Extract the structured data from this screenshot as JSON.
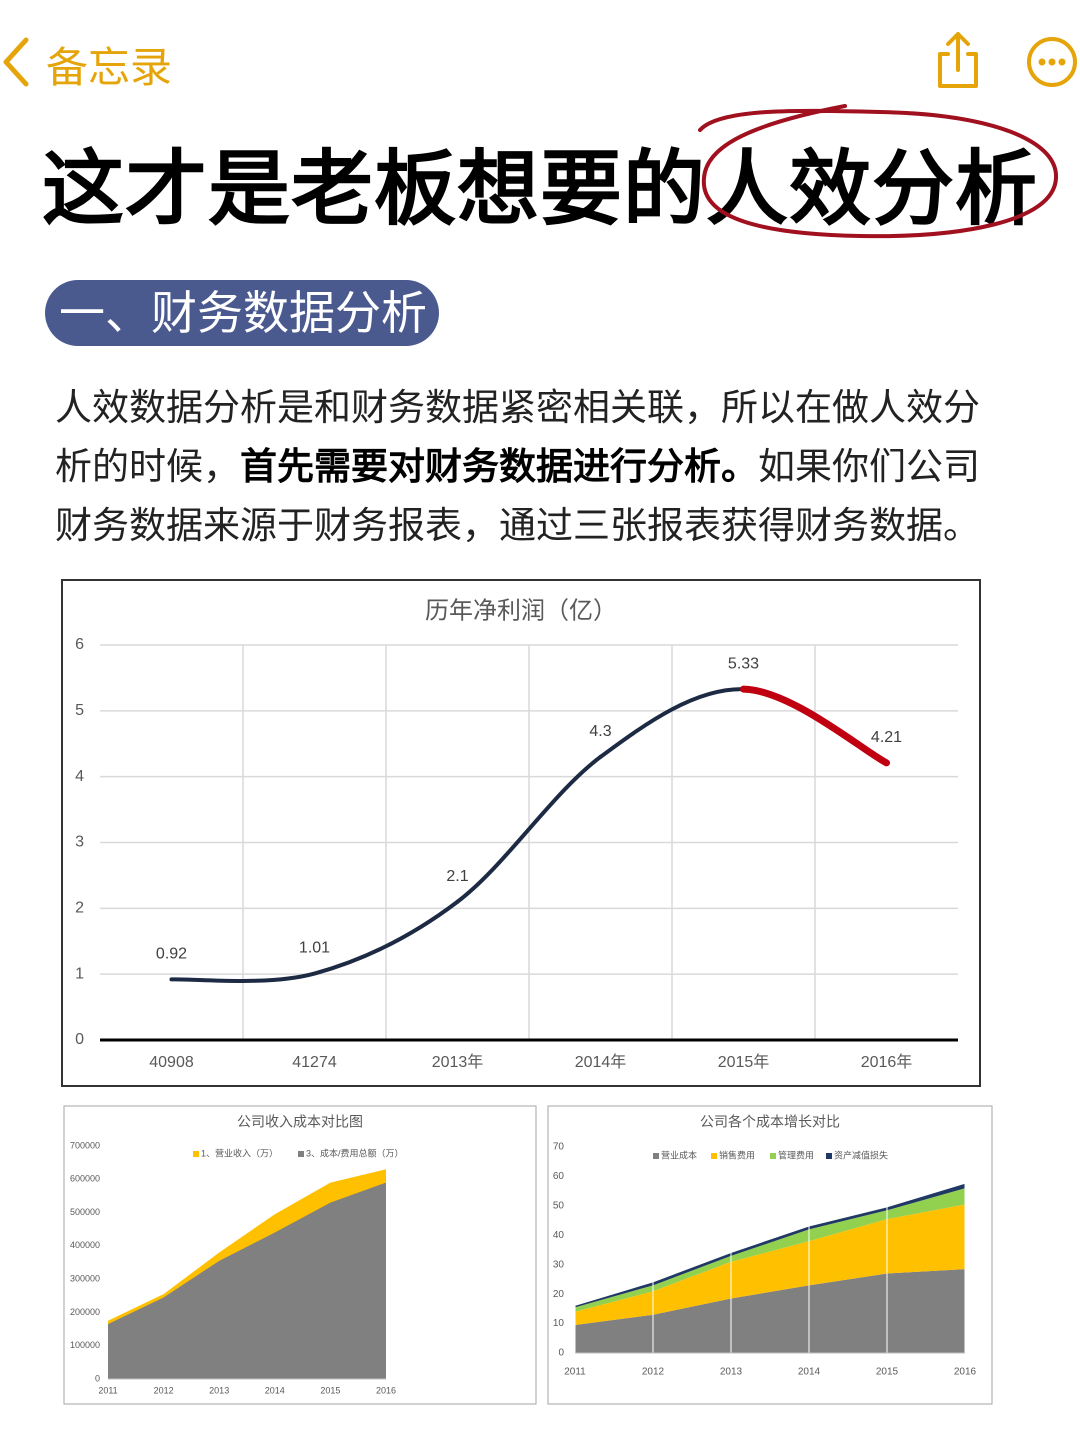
{
  "header": {
    "back": "备忘录"
  },
  "title": {
    "lead": "这才是老板想要的",
    "circled": "人效分析"
  },
  "section": "一、财务数据分析",
  "paragraph": {
    "start": "人效数据分析是和财务数据紧密相关联，所以在做人效分析的时候，",
    "bold": "首先需要对财务数据进行分析。",
    "end": "如果你们公司财务数据来源于财务报表，通过三张报表获得财务数据。"
  },
  "chart_data": [
    {
      "type": "line",
      "title": "历年净利润（亿）",
      "categories": [
        "40908",
        "41274",
        "2013年",
        "2014年",
        "2015年",
        "2016年"
      ],
      "values": [
        0.92,
        1.01,
        2.1,
        4.3,
        5.33,
        4.21
      ],
      "line_colors": [
        "#1c2a44",
        "#1c2a44",
        "#1c2a44",
        "#1c2a44",
        "#c00010"
      ],
      "ylim": [
        0,
        6
      ],
      "yticks": [
        0,
        1,
        2,
        3,
        4,
        5,
        6
      ],
      "grid": true
    },
    {
      "type": "area",
      "title": "公司收入成本对比图",
      "categories": [
        "2011",
        "2012",
        "2013",
        "2014",
        "2015",
        "2016"
      ],
      "series": [
        {
          "name": "1、营业收入（万）",
          "color": "#ffc000",
          "values": [
            175000,
            255000,
            380000,
            495000,
            590000,
            630000
          ]
        },
        {
          "name": "3、成本/费用总额（万）",
          "color": "#808080",
          "values": [
            165000,
            245000,
            355000,
            440000,
            530000,
            590000
          ]
        }
      ],
      "ylim": [
        0,
        700000
      ],
      "yticks": [
        0,
        100000,
        200000,
        300000,
        400000,
        500000,
        600000,
        700000
      ],
      "grid": false
    },
    {
      "type": "stacked_area",
      "title": "公司各个成本增长对比",
      "categories": [
        "2011",
        "2012",
        "2013",
        "2014",
        "2015",
        "2016"
      ],
      "series": [
        {
          "name": "营业成本",
          "color": "#808080",
          "values": [
            9.5,
            13,
            18.5,
            23,
            27,
            28.5
          ]
        },
        {
          "name": "销售费用",
          "color": "#ffc000",
          "values": [
            4.5,
            8,
            12.5,
            15,
            18.5,
            22
          ]
        },
        {
          "name": "管理费用",
          "color": "#92d050",
          "values": [
            1.5,
            2,
            2,
            4,
            3,
            5.5
          ]
        },
        {
          "name": "资产减值损失",
          "color": "#203864",
          "values": [
            0.5,
            1,
            1,
            1,
            1,
            1.5
          ]
        }
      ],
      "ylim": [
        0,
        70
      ],
      "yticks": [
        0,
        10,
        20,
        30,
        40,
        50,
        60,
        70
      ],
      "grid": false
    }
  ]
}
